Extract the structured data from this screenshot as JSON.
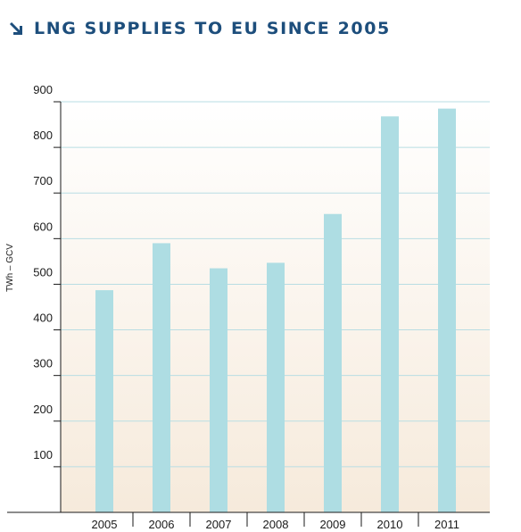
{
  "chart_data": {
    "type": "bar",
    "title": "LNG SUPPLIES TO EU SINCE 2005",
    "ylabel": "TWh – GCV",
    "xlabel": "",
    "categories": [
      "2005",
      "2006",
      "2007",
      "2008",
      "2009",
      "2010",
      "2011"
    ],
    "values": [
      487,
      590,
      535,
      547,
      654,
      868,
      885
    ],
    "ylim": [
      0,
      900
    ],
    "yticks": [
      100,
      200,
      300,
      400,
      500,
      600,
      700,
      800,
      900
    ],
    "grid": true,
    "colors": {
      "bar": "#aedde3",
      "grid": "#b9dde3",
      "title": "#1d4e7c",
      "background_top": "#ffffff",
      "background_bottom": "#f6eadb"
    }
  },
  "icons": {
    "title_arrow": "arrow-down-right-icon"
  }
}
